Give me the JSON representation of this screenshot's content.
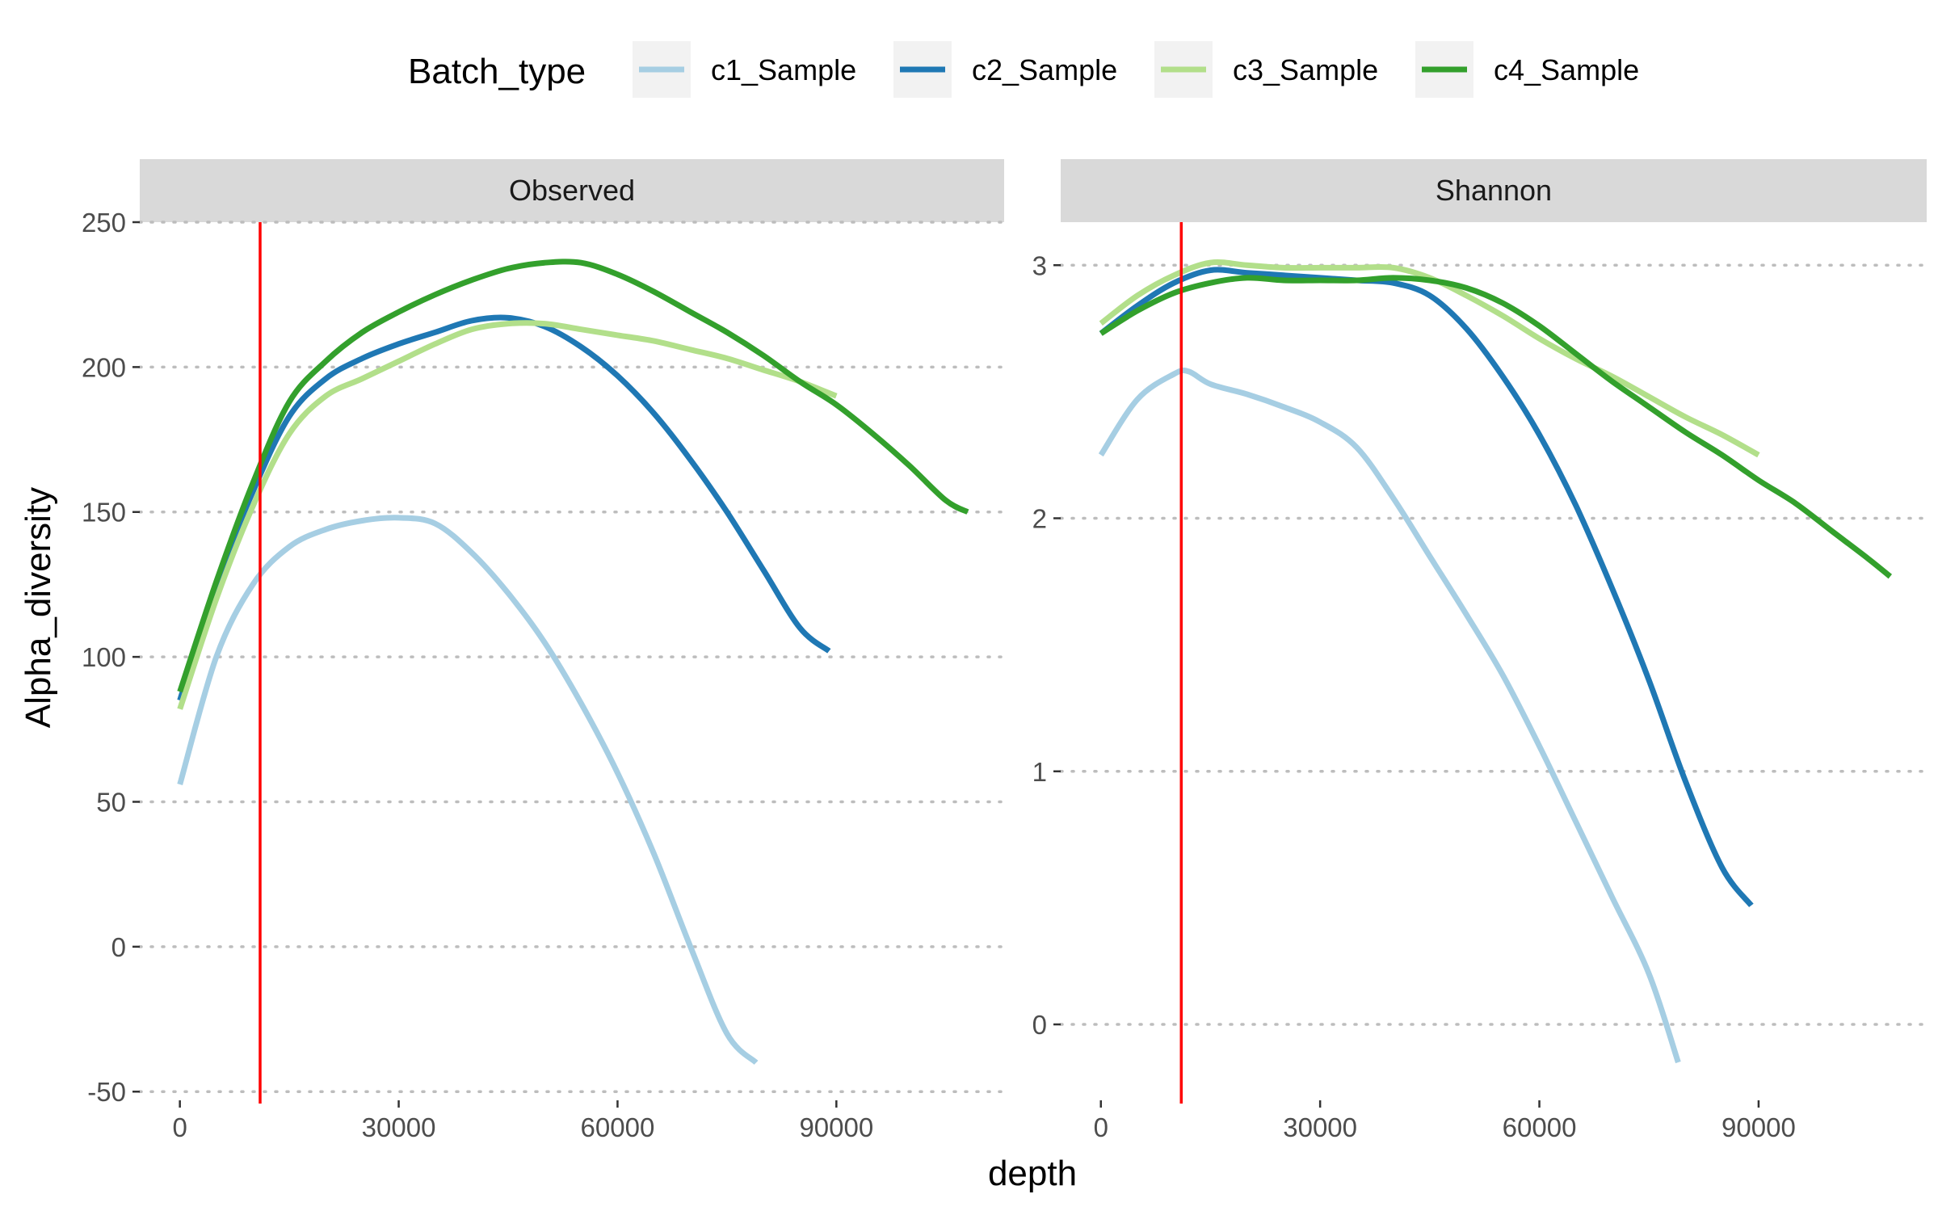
{
  "chart_data": {
    "type": "line",
    "legend": {
      "title": "Batch_type",
      "position": "top",
      "entries": [
        {
          "name": "c1_Sample",
          "color": "#a6cee3"
        },
        {
          "name": "c2_Sample",
          "color": "#1f78b4"
        },
        {
          "name": "c3_Sample",
          "color": "#b2df8a"
        },
        {
          "name": "c4_Sample",
          "color": "#33a02c"
        }
      ]
    },
    "xlabel": "depth",
    "ylabel": "Alpha_diversity",
    "grid": "horizontal dotted major gridlines",
    "vline": {
      "x": 11000,
      "color": "#ff0000"
    },
    "panels": [
      {
        "strip": "Observed",
        "xlim": [
          -5500,
          113000
        ],
        "ylim": [
          -53,
          250
        ],
        "xticks": [
          0,
          30000,
          60000,
          90000
        ],
        "xtick_labels": [
          "0",
          "30000",
          "60000",
          "90000"
        ],
        "yticks": [
          -50,
          0,
          50,
          100,
          150,
          200,
          250
        ],
        "ytick_labels": [
          "-50",
          "0",
          "50",
          "100",
          "150",
          "200",
          "250"
        ],
        "series": [
          {
            "name": "c1_Sample",
            "x": [
              0,
              5000,
              10000,
              15000,
              20000,
              25000,
              30000,
              35000,
              40000,
              45000,
              50000,
              55000,
              60000,
              65000,
              70000,
              75000,
              79000
            ],
            "y": [
              56,
              100,
              125,
              138,
              144,
              147,
              148,
              146,
              136,
              122,
              105,
              84,
              60,
              32,
              0,
              -30,
              -40
            ]
          },
          {
            "name": "c2_Sample",
            "x": [
              0,
              5000,
              10000,
              15000,
              20000,
              25000,
              30000,
              35000,
              40000,
              45000,
              50000,
              55000,
              60000,
              65000,
              70000,
              75000,
              80000,
              85000,
              89000
            ],
            "y": [
              85,
              125,
              157,
              183,
              196,
              203,
              208,
              212,
              216,
              217,
              214,
              207,
              197,
              184,
              168,
              150,
              130,
              110,
              102
            ]
          },
          {
            "name": "c3_Sample",
            "x": [
              0,
              5000,
              10000,
              15000,
              20000,
              25000,
              30000,
              35000,
              40000,
              45000,
              50000,
              55000,
              60000,
              65000,
              70000,
              75000,
              80000,
              85000,
              90000
            ],
            "y": [
              82,
              120,
              152,
              177,
              190,
              196,
              202,
              208,
              213,
              215,
              215,
              213,
              211,
              209,
              206,
              203,
              199,
              195,
              190
            ]
          },
          {
            "name": "c4_Sample",
            "x": [
              0,
              5000,
              10000,
              15000,
              20000,
              25000,
              30000,
              35000,
              40000,
              45000,
              50000,
              55000,
              60000,
              65000,
              70000,
              75000,
              80000,
              85000,
              90000,
              95000,
              100000,
              105000,
              108000
            ],
            "y": [
              88,
              126,
              160,
              188,
              202,
              212,
              219,
              225,
              230,
              234,
              236,
              236,
              232,
              226,
              219,
              212,
              204,
              195,
              187,
              177,
              166,
              154,
              150
            ]
          }
        ]
      },
      {
        "strip": "Shannon",
        "xlim": [
          -5500,
          113000
        ],
        "ylim": [
          -0.3,
          3.17
        ],
        "xticks": [
          0,
          30000,
          60000,
          90000
        ],
        "xtick_labels": [
          "0",
          "30000",
          "60000",
          "90000"
        ],
        "yticks": [
          0,
          1,
          2,
          3
        ],
        "ytick_labels": [
          "0",
          "1",
          "2",
          "3"
        ],
        "series": [
          {
            "name": "c1_Sample",
            "x": [
              0,
              5000,
              10000,
              12000,
              15000,
              20000,
              25000,
              30000,
              35000,
              40000,
              45000,
              50000,
              55000,
              60000,
              65000,
              70000,
              75000,
              79000
            ],
            "y": [
              2.25,
              2.47,
              2.57,
              2.58,
              2.53,
              2.49,
              2.44,
              2.38,
              2.28,
              2.08,
              1.85,
              1.62,
              1.38,
              1.1,
              0.8,
              0.5,
              0.2,
              -0.15
            ]
          },
          {
            "name": "c2_Sample",
            "x": [
              0,
              5000,
              10000,
              15000,
              20000,
              25000,
              30000,
              35000,
              40000,
              45000,
              50000,
              55000,
              60000,
              65000,
              70000,
              75000,
              80000,
              85000,
              89000
            ],
            "y": [
              2.73,
              2.84,
              2.93,
              2.98,
              2.97,
              2.96,
              2.95,
              2.94,
              2.93,
              2.88,
              2.75,
              2.56,
              2.33,
              2.05,
              1.72,
              1.36,
              0.96,
              0.62,
              0.47
            ]
          },
          {
            "name": "c3_Sample",
            "x": [
              0,
              5000,
              10000,
              15000,
              20000,
              25000,
              30000,
              35000,
              40000,
              45000,
              50000,
              55000,
              60000,
              65000,
              70000,
              75000,
              80000,
              85000,
              90000
            ],
            "y": [
              2.77,
              2.88,
              2.96,
              3.01,
              3.0,
              2.99,
              2.99,
              2.99,
              2.99,
              2.95,
              2.88,
              2.8,
              2.71,
              2.63,
              2.56,
              2.48,
              2.4,
              2.33,
              2.25
            ]
          },
          {
            "name": "c4_Sample",
            "x": [
              0,
              5000,
              10000,
              15000,
              20000,
              25000,
              30000,
              35000,
              40000,
              45000,
              50000,
              55000,
              60000,
              65000,
              70000,
              75000,
              80000,
              85000,
              90000,
              95000,
              100000,
              105000,
              108000
            ],
            "y": [
              2.73,
              2.82,
              2.89,
              2.93,
              2.95,
              2.94,
              2.94,
              2.94,
              2.95,
              2.94,
              2.91,
              2.85,
              2.76,
              2.65,
              2.54,
              2.44,
              2.34,
              2.25,
              2.15,
              2.06,
              1.95,
              1.84,
              1.77
            ]
          }
        ]
      }
    ]
  }
}
